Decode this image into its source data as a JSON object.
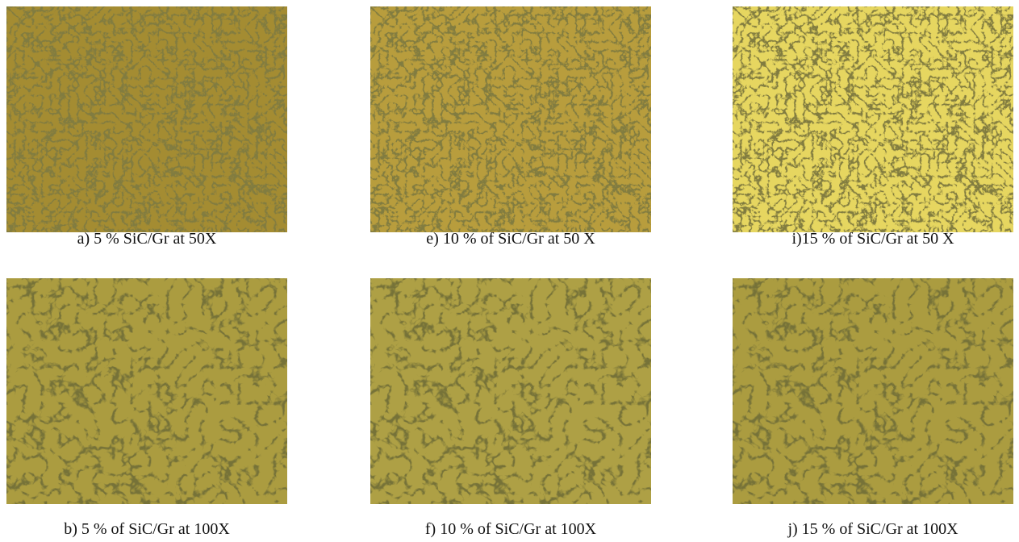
{
  "figure": {
    "panels": [
      {
        "caption": "a) 5 % SiC/Gr at 50X"
      },
      {
        "caption": "e) 10 % of SiC/Gr at 50 X"
      },
      {
        "caption": "i)15 % of SiC/Gr at 50 X"
      },
      {
        "caption": "b) 5 % of SiC/Gr at 100X"
      },
      {
        "caption": "f) 10 % of SiC/Gr at 100X"
      },
      {
        "caption": "j) 15 % of SiC/Gr at 100X"
      }
    ]
  }
}
